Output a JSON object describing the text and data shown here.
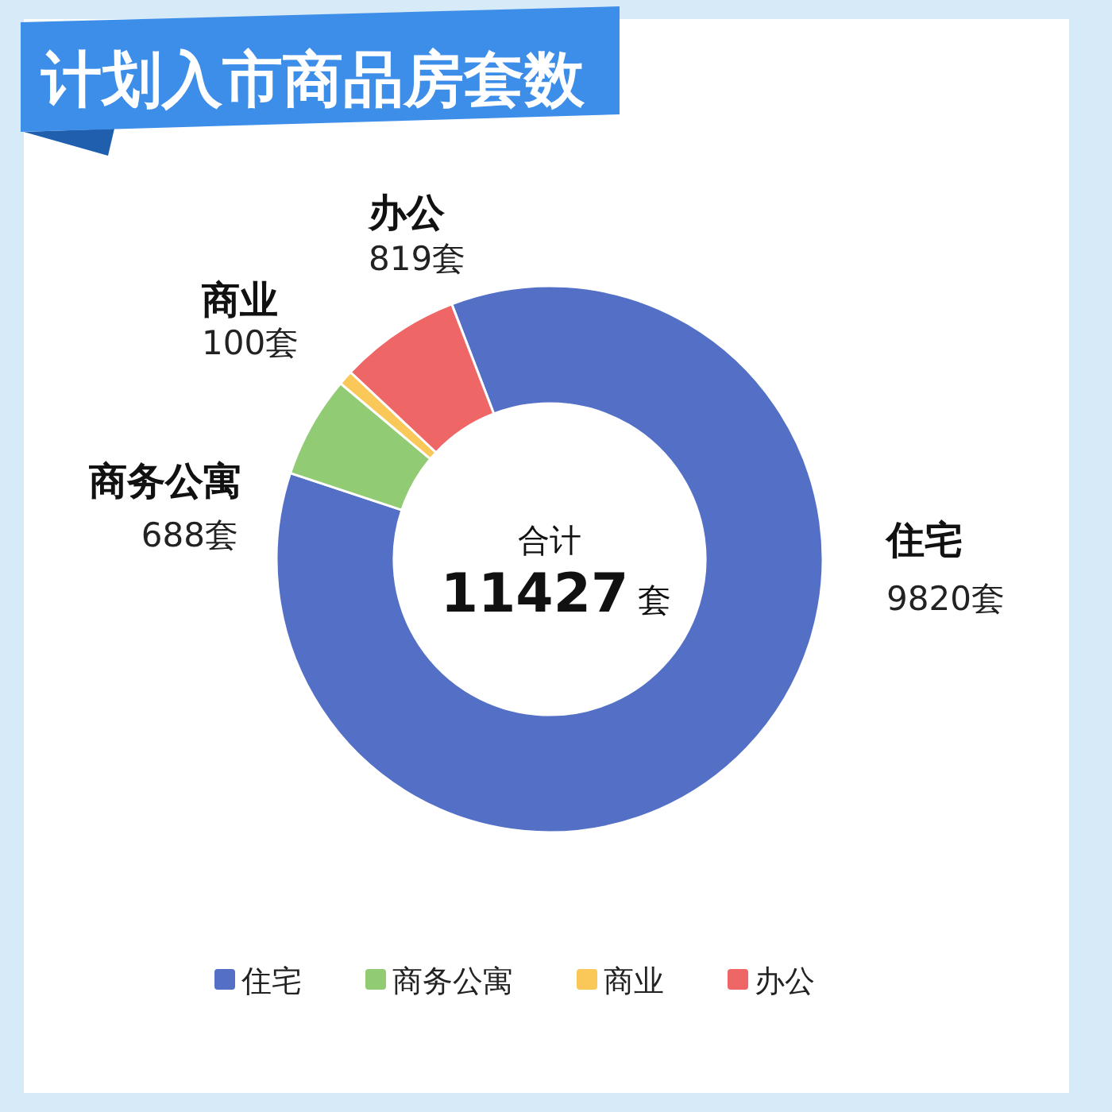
{
  "chart_data": {
    "type": "donut",
    "title": "计划入市商品房套数",
    "categories": [
      "住宅",
      "商务公寓",
      "商业",
      "办公"
    ],
    "values": [
      9820,
      688,
      100,
      819
    ],
    "colors": [
      "#5470c6",
      "#91cc75",
      "#fac858",
      "#ee6666"
    ],
    "value_labels": [
      "9820套",
      "688套",
      "100套",
      "819套"
    ],
    "annotations": [
      "合计",
      "**11427**套"
    ],
    "legend": "bottom"
  }
}
